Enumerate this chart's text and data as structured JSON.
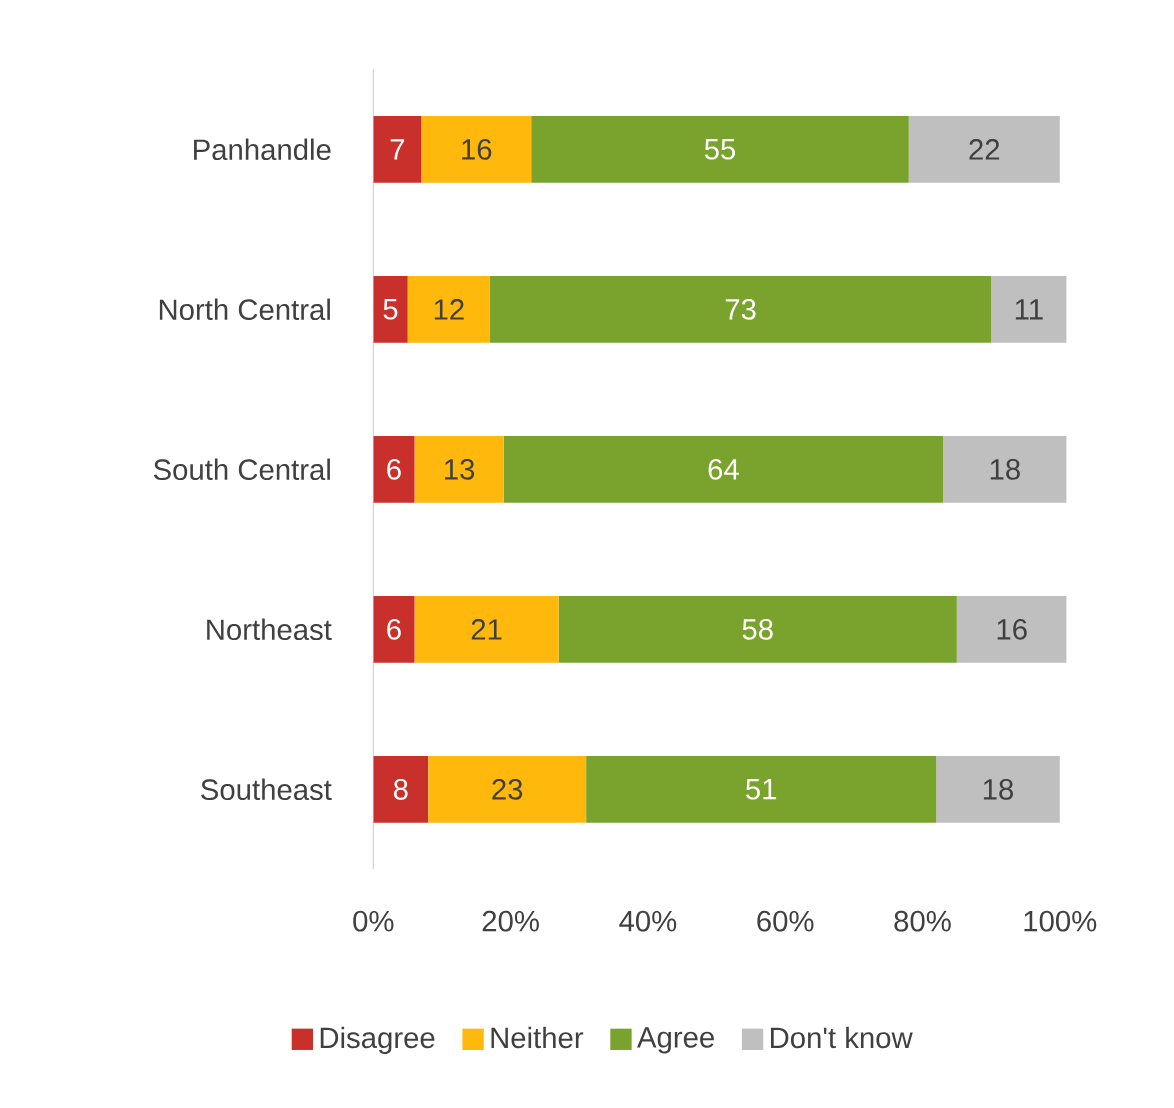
{
  "chart_data": {
    "type": "bar",
    "orientation": "horizontal",
    "stacked": true,
    "data_labels": true,
    "legend": "bottom",
    "categories": [
      "Panhandle",
      "North Central",
      "South Central",
      "Northeast",
      "Southeast"
    ],
    "xlim": [
      0,
      101
    ],
    "xticks": [
      {
        "value": 0,
        "label": "0%"
      },
      {
        "value": 20,
        "label": "20%"
      },
      {
        "value": 40,
        "label": "40%"
      },
      {
        "value": 60,
        "label": "60%"
      },
      {
        "value": 80,
        "label": "80%"
      },
      {
        "value": 100,
        "label": "100%"
      }
    ],
    "series": [
      {
        "name": "Disagree",
        "color": "#c9302c",
        "values": [
          7,
          5,
          6,
          6,
          8
        ]
      },
      {
        "name": "Neither",
        "color": "#ffb80b",
        "values": [
          16,
          12,
          13,
          21,
          23
        ]
      },
      {
        "name": "Agree",
        "color": "#7aa32e",
        "values": [
          55,
          73,
          64,
          58,
          51
        ]
      },
      {
        "name": "Don't know",
        "color": "#bfbfbf",
        "values": [
          22,
          11,
          18,
          16,
          18
        ]
      }
    ]
  }
}
